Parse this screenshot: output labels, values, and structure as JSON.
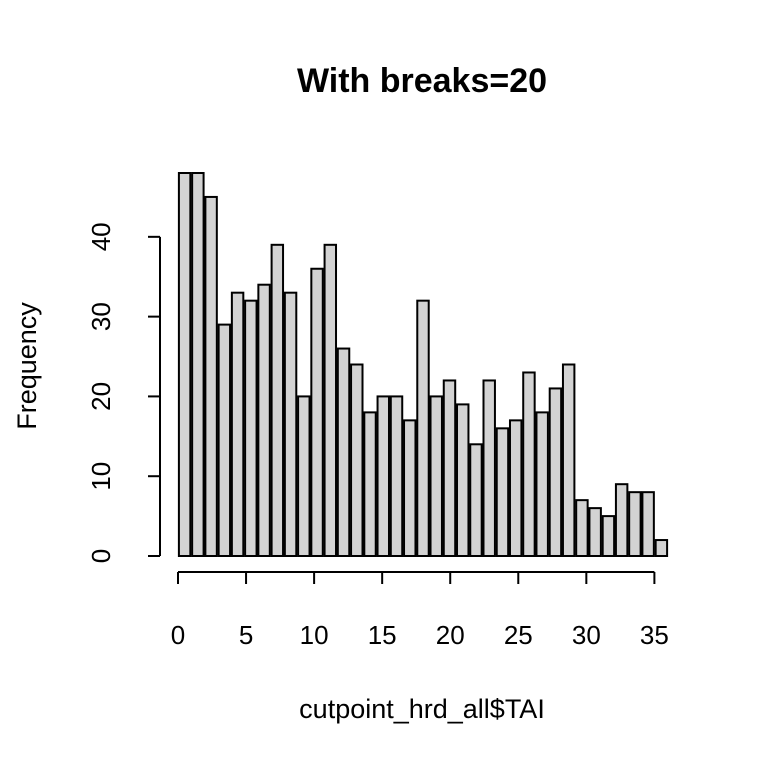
{
  "chart_data": {
    "type": "bar",
    "title": "With breaks=20",
    "xlabel": "cutpoint_hrd_all$TAI",
    "ylabel": "Frequency",
    "bin_width": 1,
    "x_start": 0,
    "values": [
      48,
      48,
      45,
      29,
      33,
      32,
      34,
      39,
      33,
      20,
      36,
      39,
      26,
      24,
      18,
      20,
      20,
      17,
      32,
      20,
      22,
      19,
      14,
      22,
      16,
      17,
      23,
      18,
      21,
      24,
      7,
      6,
      5,
      9,
      8,
      8,
      2
    ],
    "xlim": [
      0,
      36
    ],
    "ylim": [
      0,
      48
    ],
    "xticks": [
      0,
      5,
      10,
      15,
      20,
      25,
      30,
      35
    ],
    "yticks": [
      0,
      10,
      20,
      30,
      40
    ],
    "grid": false,
    "legend": "none"
  }
}
